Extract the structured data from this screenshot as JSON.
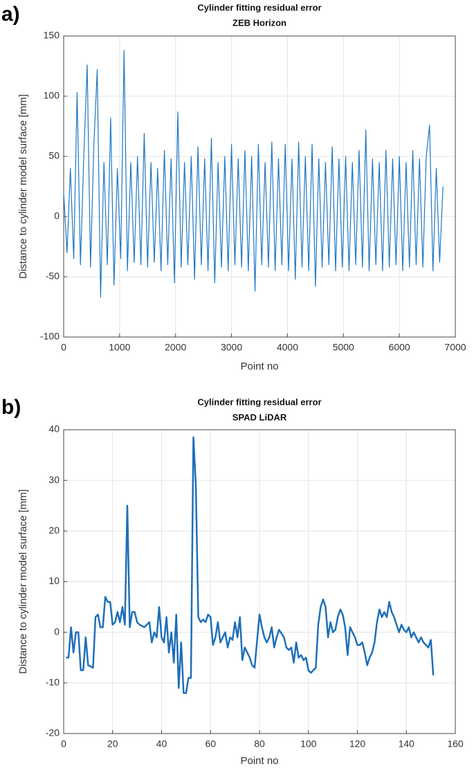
{
  "chart_data": [
    {
      "type": "line",
      "panel_label": "a)",
      "title": "Cylinder fitting residual error",
      "subtitle": "ZEB Horizon",
      "xlabel": "Point no",
      "ylabel": "Distance to cylinder model surface [mm]",
      "color": "#1f77c0",
      "grid": true,
      "xlim": [
        0,
        7000
      ],
      "xticks": [
        0,
        1000,
        2000,
        3000,
        4000,
        5000,
        6000,
        7000
      ],
      "ylim": [
        -100,
        150
      ],
      "yticks": [
        -100,
        -50,
        0,
        50,
        100,
        150
      ],
      "x": [
        0,
        60,
        120,
        180,
        240,
        300,
        360,
        420,
        480,
        540,
        600,
        660,
        720,
        780,
        840,
        900,
        960,
        1020,
        1080,
        1140,
        1200,
        1260,
        1320,
        1380,
        1440,
        1500,
        1560,
        1620,
        1680,
        1740,
        1800,
        1860,
        1920,
        1980,
        2040,
        2100,
        2160,
        2220,
        2280,
        2340,
        2400,
        2460,
        2520,
        2580,
        2640,
        2700,
        2760,
        2820,
        2880,
        2940,
        3000,
        3060,
        3120,
        3180,
        3240,
        3300,
        3360,
        3420,
        3480,
        3540,
        3600,
        3660,
        3720,
        3780,
        3840,
        3900,
        3960,
        4020,
        4080,
        4140,
        4200,
        4260,
        4320,
        4380,
        4440,
        4500,
        4560,
        4620,
        4680,
        4740,
        4800,
        4860,
        4920,
        4980,
        5040,
        5100,
        5160,
        5220,
        5280,
        5340,
        5400,
        5460,
        5520,
        5580,
        5640,
        5700,
        5760,
        5820,
        5880,
        5940,
        6000,
        6060,
        6120,
        6180,
        6240,
        6300,
        6360,
        6420,
        6480,
        6540,
        6600,
        6660,
        6720,
        6780
      ],
      "values": [
        20,
        -30,
        40,
        -35,
        103,
        -40,
        50,
        126,
        -42,
        60,
        122,
        -67,
        45,
        -40,
        82,
        -57,
        40,
        -35,
        138,
        -45,
        45,
        -38,
        50,
        -40,
        69,
        -42,
        45,
        -38,
        40,
        -45,
        55,
        -40,
        48,
        -55,
        87,
        -42,
        45,
        -40,
        50,
        -52,
        58,
        -40,
        48,
        -45,
        65,
        -55,
        45,
        -42,
        50,
        -45,
        60,
        -40,
        48,
        -42,
        55,
        -45,
        50,
        -62,
        60,
        -40,
        45,
        -42,
        62,
        -45,
        48,
        -40,
        60,
        -45,
        48,
        -52,
        62,
        -42,
        50,
        -45,
        60,
        -58,
        48,
        -42,
        45,
        -40,
        58,
        -45,
        48,
        -42,
        50,
        -45,
        45,
        -40,
        55,
        -42,
        72,
        -45,
        48,
        -40,
        45,
        -45,
        55,
        -42,
        48,
        -40,
        50,
        -45,
        45,
        -42,
        55,
        -40,
        48,
        -42,
        50,
        76,
        -45,
        40,
        -38,
        25
      ]
    },
    {
      "type": "line",
      "panel_label": "b)",
      "title": "Cylinder fitting residual error",
      "subtitle": "SPAD LiDAR",
      "xlabel": "Point no",
      "ylabel": "Distance to cylinder model surface [mm]",
      "color": "#1f6fb8",
      "grid": true,
      "xlim": [
        0,
        160
      ],
      "xticks": [
        0,
        20,
        40,
        60,
        80,
        100,
        120,
        140,
        160
      ],
      "ylim": [
        -20,
        40
      ],
      "yticks": [
        -20,
        -10,
        0,
        10,
        20,
        30,
        40
      ],
      "x": [
        1,
        2,
        3,
        4,
        5,
        6,
        7,
        8,
        9,
        10,
        12,
        13,
        14,
        15,
        16,
        17,
        18,
        19,
        20,
        21,
        22,
        23,
        24,
        25,
        26,
        27,
        28,
        29,
        30,
        31,
        33,
        35,
        36,
        37,
        38,
        39,
        40,
        41,
        42,
        43,
        44,
        45,
        46,
        47,
        48,
        49,
        50,
        51,
        52,
        53,
        54,
        55,
        56,
        57,
        58,
        59,
        60,
        61,
        62,
        63,
        64,
        65,
        66,
        67,
        68,
        69,
        70,
        71,
        72,
        73,
        74,
        75,
        76,
        77,
        78,
        80,
        81,
        82,
        83,
        84,
        85,
        86,
        87,
        88,
        90,
        91,
        92,
        93,
        94,
        95,
        96,
        97,
        98,
        99,
        100,
        101,
        102,
        103,
        104,
        105,
        106,
        107,
        108,
        109,
        110,
        111,
        112,
        113,
        114,
        115,
        116,
        117,
        118,
        119,
        120,
        121,
        122,
        123,
        124,
        125,
        126,
        127,
        128,
        129,
        130,
        131,
        132,
        133,
        134,
        135,
        136,
        137,
        138,
        139,
        140,
        141,
        142,
        143,
        144,
        145,
        146,
        147,
        148,
        149,
        150,
        151
      ],
      "values": [
        -5,
        -5,
        1,
        -4,
        0,
        0,
        -7.5,
        -7.5,
        -1,
        -6.5,
        -7,
        3,
        3.5,
        1,
        1,
        7,
        6,
        6,
        1.5,
        2,
        4,
        2,
        5,
        1.5,
        25,
        1,
        4,
        4,
        2,
        1.5,
        1,
        2,
        -2,
        0,
        -1,
        5,
        -1,
        -2,
        3,
        -4,
        0,
        -6,
        3.5,
        -11,
        -2,
        -12,
        -12,
        -9,
        -9,
        38.5,
        29,
        3,
        2,
        2.5,
        2,
        3.5,
        3,
        -2.5,
        -1,
        2,
        -2,
        -1,
        0,
        -3,
        -1,
        -1.5,
        2,
        -1,
        3,
        -5.5,
        -3,
        -4,
        -5,
        -6.5,
        -7,
        3.5,
        1,
        -1,
        -2,
        -1,
        1,
        -3,
        -1,
        0.5,
        -1,
        -3,
        -3.5,
        -3,
        -6,
        -2,
        -5,
        -4.5,
        -5.5,
        -5,
        -7.5,
        -8,
        -7.5,
        -7,
        1.5,
        5,
        6.5,
        5,
        -1,
        2,
        0,
        0.5,
        3,
        4.5,
        3.5,
        1,
        -4.5,
        1,
        0,
        -1,
        -2.5,
        -2.5,
        -2,
        -4,
        -6.5,
        -5,
        -4,
        -2,
        2,
        4.5,
        3,
        4,
        3,
        6,
        4,
        3,
        1.5,
        0,
        1.5,
        0.5,
        0,
        1,
        -1,
        0,
        -1,
        -2,
        -1,
        -2,
        -2.5,
        -3,
        -1.5,
        -8.5
      ]
    }
  ]
}
